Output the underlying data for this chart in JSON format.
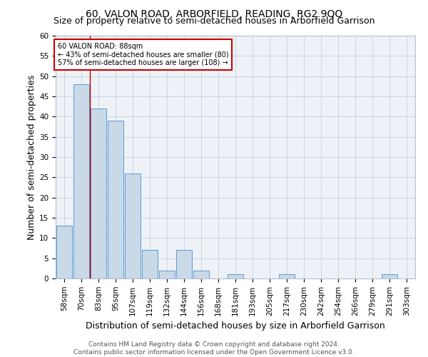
{
  "title": "60, VALON ROAD, ARBORFIELD, READING, RG2 9QQ",
  "subtitle": "Size of property relative to semi-detached houses in Arborfield Garrison",
  "xlabel": "Distribution of semi-detached houses by size in Arborfield Garrison",
  "ylabel": "Number of semi-detached properties",
  "categories": [
    "58sqm",
    "70sqm",
    "83sqm",
    "95sqm",
    "107sqm",
    "119sqm",
    "132sqm",
    "144sqm",
    "156sqm",
    "168sqm",
    "181sqm",
    "193sqm",
    "205sqm",
    "217sqm",
    "230sqm",
    "242sqm",
    "254sqm",
    "266sqm",
    "279sqm",
    "291sqm",
    "303sqm"
  ],
  "values": [
    13,
    48,
    42,
    39,
    26,
    7,
    2,
    7,
    2,
    0,
    1,
    0,
    0,
    1,
    0,
    0,
    0,
    0,
    0,
    1,
    0
  ],
  "bar_color": "#c9d9e8",
  "bar_edge_color": "#5b9bd5",
  "annotation_title": "60 VALON ROAD: 88sqm",
  "annotation_line1": "← 43% of semi-detached houses are smaller (80)",
  "annotation_line2": "57% of semi-detached houses are larger (108) →",
  "annotation_box_color": "#ffffff",
  "annotation_box_edge_color": "#cc0000",
  "ylim": [
    0,
    60
  ],
  "yticks": [
    0,
    5,
    10,
    15,
    20,
    25,
    30,
    35,
    40,
    45,
    50,
    55,
    60
  ],
  "footer_line1": "Contains HM Land Registry data © Crown copyright and database right 2024.",
  "footer_line2": "Contains public sector information licensed under the Open Government Licence v3.0.",
  "background_color": "#ffffff",
  "plot_bg_color": "#eef2f7",
  "title_fontsize": 10,
  "subtitle_fontsize": 9,
  "axis_label_fontsize": 9,
  "tick_fontsize": 7.5,
  "footer_fontsize": 6.5,
  "red_line_x": 1.5
}
